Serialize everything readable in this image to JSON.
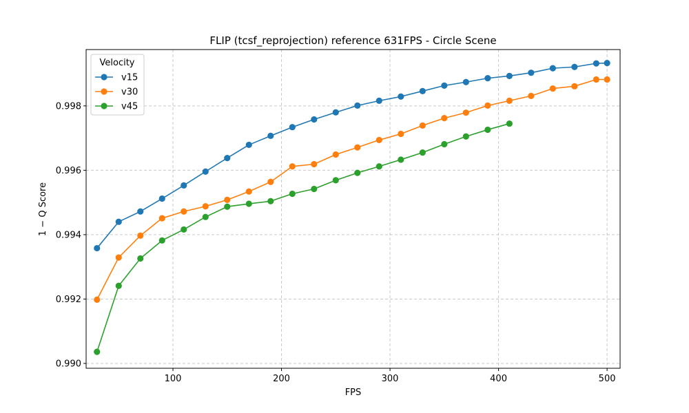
{
  "chart_data": {
    "type": "line",
    "title": "FLIP (tcsf_reprojection) reference 631FPS - Circle Scene",
    "xlabel": "FPS",
    "ylabel": "1 − Q Score",
    "xlim": [
      20,
      512
    ],
    "ylim": [
      0.98985,
      0.99975
    ],
    "x_ticks": [
      100,
      200,
      300,
      400,
      500
    ],
    "y_ticks": [
      0.99,
      0.992,
      0.994,
      0.996,
      0.998
    ],
    "y_tick_labels": [
      "0.990",
      "0.992",
      "0.994",
      "0.996",
      "0.998"
    ],
    "grid": true,
    "legend": {
      "title": "Velocity",
      "location": "top-left"
    },
    "series": [
      {
        "name": "v15",
        "color": "#1f77b4",
        "x": [
          30,
          50,
          70,
          90,
          110,
          130,
          150,
          170,
          190,
          210,
          230,
          250,
          270,
          290,
          310,
          330,
          350,
          370,
          390,
          410,
          430,
          450,
          470,
          490,
          500
        ],
        "y": [
          0.99358,
          0.9944,
          0.99472,
          0.99512,
          0.99553,
          0.99596,
          0.99638,
          0.99679,
          0.99707,
          0.99734,
          0.99758,
          0.9978,
          0.99801,
          0.99816,
          0.99829,
          0.99846,
          0.99863,
          0.99874,
          0.99886,
          0.99893,
          0.99903,
          0.99917,
          0.99921,
          0.99932,
          0.99933
        ]
      },
      {
        "name": "v30",
        "color": "#ff7f0e",
        "x": [
          30,
          50,
          70,
          90,
          110,
          130,
          150,
          170,
          190,
          210,
          230,
          250,
          270,
          290,
          310,
          330,
          350,
          370,
          390,
          410,
          430,
          450,
          470,
          490,
          500
        ],
        "y": [
          0.99198,
          0.99329,
          0.99397,
          0.99451,
          0.99472,
          0.99488,
          0.99508,
          0.99534,
          0.99564,
          0.99612,
          0.99619,
          0.99649,
          0.99671,
          0.99694,
          0.99713,
          0.99739,
          0.99762,
          0.99779,
          0.99801,
          0.99816,
          0.99831,
          0.99854,
          0.99861,
          0.99882,
          0.99882
        ]
      },
      {
        "name": "v45",
        "color": "#2ca02c",
        "x": [
          30,
          50,
          70,
          90,
          110,
          130,
          150,
          170,
          190,
          210,
          230,
          250,
          270,
          290,
          310,
          330,
          350,
          370,
          390,
          410
        ],
        "y": [
          0.99036,
          0.99241,
          0.99326,
          0.99382,
          0.99416,
          0.99455,
          0.99487,
          0.99496,
          0.99504,
          0.99527,
          0.99542,
          0.99569,
          0.99592,
          0.99612,
          0.99633,
          0.99655,
          0.99681,
          0.99705,
          0.99726,
          0.99745
        ]
      }
    ]
  }
}
